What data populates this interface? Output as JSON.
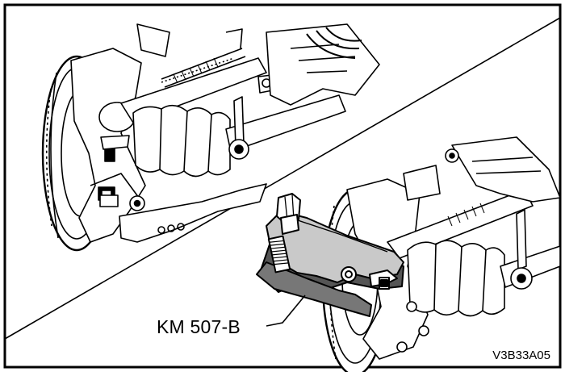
{
  "figure": {
    "tool_label": "KM 507-B",
    "figure_id": "V3B33A05"
  }
}
